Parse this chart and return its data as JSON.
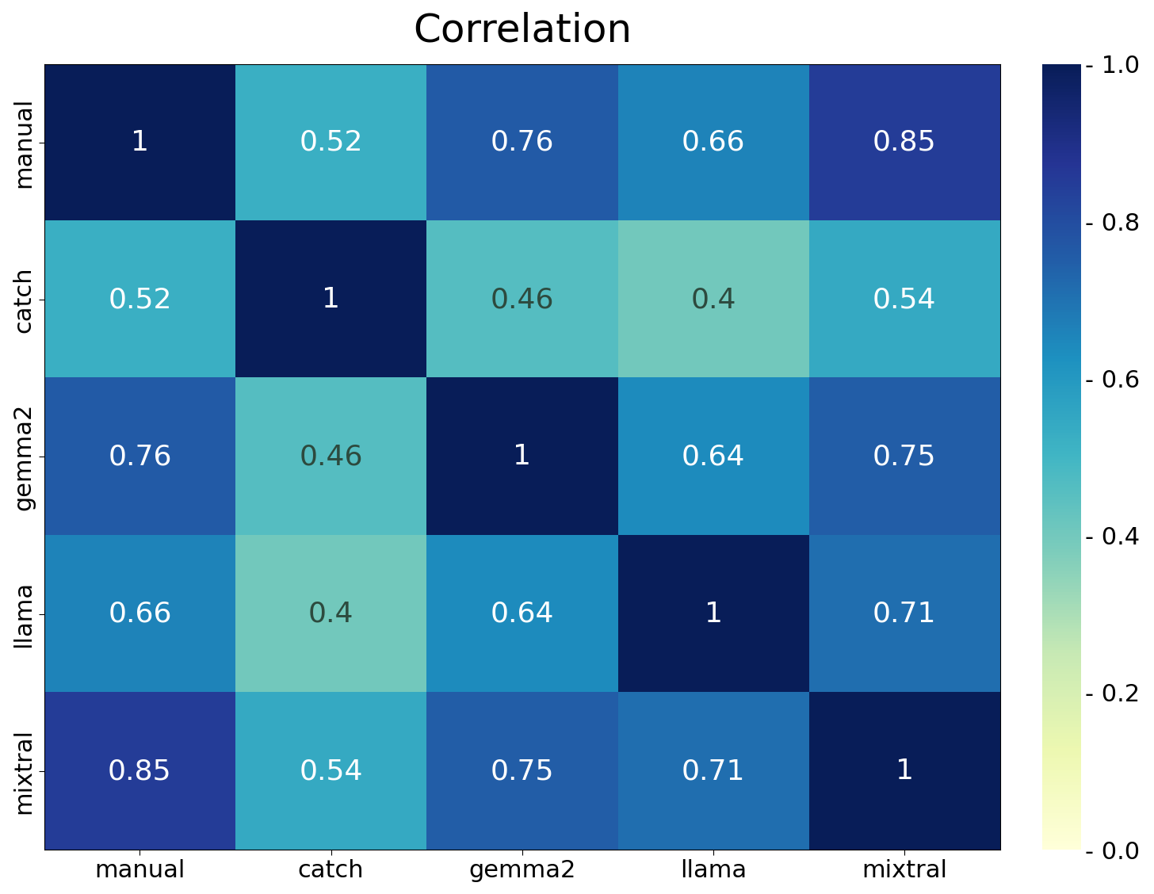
{
  "labels": [
    "manual",
    "catch",
    "gemma2",
    "llama",
    "mixtral"
  ],
  "matrix": [
    [
      1.0,
      0.52,
      0.76,
      0.66,
      0.85
    ],
    [
      0.52,
      1.0,
      0.46,
      0.4,
      0.54
    ],
    [
      0.76,
      0.46,
      1.0,
      0.64,
      0.75
    ],
    [
      0.66,
      0.4,
      0.64,
      1.0,
      0.71
    ],
    [
      0.85,
      0.54,
      0.75,
      0.71,
      1.0
    ]
  ],
  "title": "Correlation",
  "title_fontsize": 36,
  "tick_fontsize": 22,
  "annot_fontsize": 26,
  "cmap": "YlGnBu",
  "vmin": 0.0,
  "vmax": 1.0,
  "colorbar_ticks": [
    0.0,
    0.2,
    0.4,
    0.6,
    0.8,
    1.0
  ],
  "colorbar_ticklabels": [
    "- 0.0",
    "- 0.2",
    "- 0.4",
    "- 0.6",
    "- 0.8",
    "- 1.0"
  ],
  "figsize": [
    14.56,
    11.28
  ],
  "dpi": 100,
  "bg_color": "#ffffff"
}
